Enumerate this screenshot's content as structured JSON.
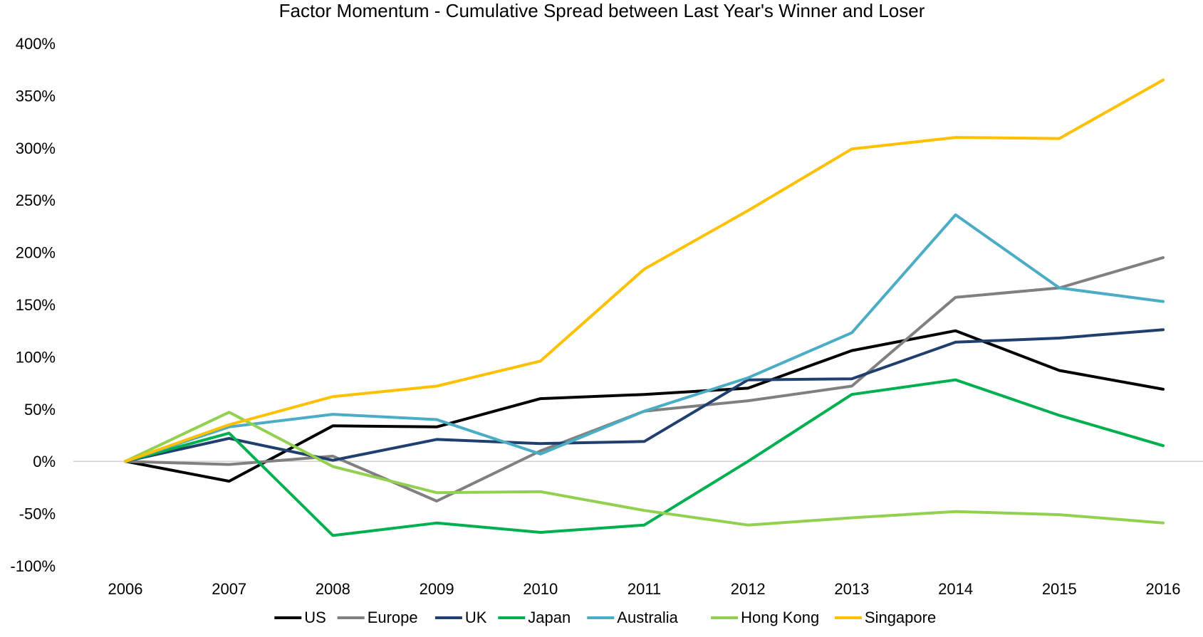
{
  "chart_data": {
    "type": "line",
    "title": "Factor Momentum - Cumulative Spread between Last Year's Winner and Loser",
    "xlabel": "",
    "ylabel": "",
    "categories": [
      "2006",
      "2007",
      "2008",
      "2009",
      "2010",
      "2011",
      "2012",
      "2013",
      "2014",
      "2015",
      "2016"
    ],
    "ylim": [
      -100,
      400
    ],
    "y_ticks": [
      400,
      350,
      300,
      250,
      200,
      150,
      100,
      50,
      0,
      -50,
      -100
    ],
    "y_tick_labels": [
      "400%",
      "350%",
      "300%",
      "250%",
      "200%",
      "150%",
      "100%",
      "50%",
      "0%",
      "-50%",
      "-100%"
    ],
    "grid": false,
    "zero_line": true,
    "legend_position": "bottom",
    "series": [
      {
        "name": "US",
        "color": "#000000",
        "values": [
          0,
          -19,
          34,
          33,
          60,
          64,
          70,
          106,
          125,
          87,
          69
        ]
      },
      {
        "name": "Europe",
        "color": "#808080",
        "values": [
          0,
          -3,
          5,
          -38,
          10,
          48,
          58,
          72,
          157,
          166,
          195
        ]
      },
      {
        "name": "UK",
        "color": "#1f3f6e",
        "values": [
          0,
          22,
          1,
          21,
          17,
          19,
          78,
          79,
          114,
          118,
          126
        ]
      },
      {
        "name": "Japan",
        "color": "#00b050",
        "values": [
          0,
          27,
          -71,
          -59,
          -68,
          -61,
          0,
          64,
          78,
          44,
          15
        ]
      },
      {
        "name": "Australia",
        "color": "#4bacc6",
        "values": [
          0,
          33,
          45,
          40,
          7,
          48,
          80,
          123,
          236,
          166,
          153
        ]
      },
      {
        "name": "Hong Kong",
        "color": "#92d050",
        "values": [
          0,
          47,
          -5,
          -30,
          -29,
          -47,
          -61,
          -54,
          -48,
          -51,
          -59
        ]
      },
      {
        "name": "Singapore",
        "color": "#ffc000",
        "values": [
          0,
          35,
          62,
          72,
          96,
          184,
          240,
          299,
          310,
          309,
          365
        ]
      }
    ]
  }
}
